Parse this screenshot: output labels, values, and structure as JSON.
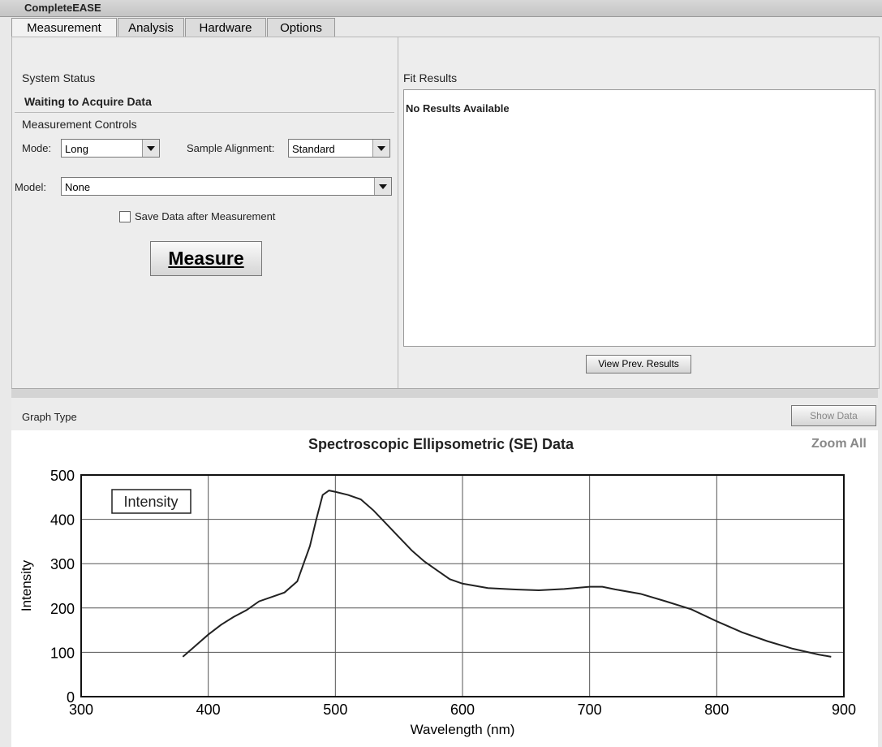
{
  "window": {
    "title": "CompleteEASE"
  },
  "tabs": [
    "Measurement",
    "Analysis",
    "Hardware",
    "Options"
  ],
  "system_status": {
    "label": "System Status",
    "value": "Waiting to Acquire Data"
  },
  "measurement_controls": {
    "label": "Measurement Controls",
    "mode_label": "Mode:",
    "mode": "Long",
    "alignment_label": "Sample Alignment:",
    "alignment": "Standard",
    "model_label": "Model:",
    "model": "None",
    "save_label": "Save Data after Measurement",
    "measure_button": "Measure"
  },
  "fit_results": {
    "label": "Fit Results",
    "value": "No Results Available",
    "button": "View Prev. Results"
  },
  "graph": {
    "type_label": "Graph Type",
    "show_data": "Show Data",
    "zoom": "Zoom All"
  },
  "chart_data": {
    "type": "line",
    "title": "Spectroscopic Ellipsometric (SE) Data",
    "x_label": "Wavelength (nm)",
    "y_label": "Intensity",
    "x": [
      380,
      390,
      400,
      410,
      420,
      430,
      440,
      450,
      460,
      470,
      475,
      480,
      485,
      490,
      495,
      500,
      510,
      520,
      530,
      540,
      550,
      560,
      570,
      580,
      590,
      600,
      620,
      640,
      660,
      680,
      700,
      710,
      720,
      740,
      760,
      780,
      800,
      820,
      840,
      860,
      880,
      890
    ],
    "series": [
      {
        "name": "Intensity",
        "color": "#222222",
        "values": [
          90,
          115,
          140,
          162,
          180,
          195,
          215,
          225,
          235,
          260,
          300,
          340,
          400,
          455,
          465,
          462,
          455,
          445,
          420,
          390,
          360,
          330,
          305,
          285,
          265,
          255,
          245,
          242,
          240,
          243,
          248,
          248,
          242,
          232,
          215,
          197,
          170,
          145,
          125,
          108,
          95,
          90
        ]
      }
    ],
    "xlim": [
      300,
      900
    ],
    "ylim": [
      0,
      500
    ],
    "xticks": [
      300,
      400,
      500,
      600,
      700,
      800,
      900
    ],
    "yticks": [
      0,
      100,
      200,
      300,
      400,
      500
    ],
    "grid": true
  }
}
